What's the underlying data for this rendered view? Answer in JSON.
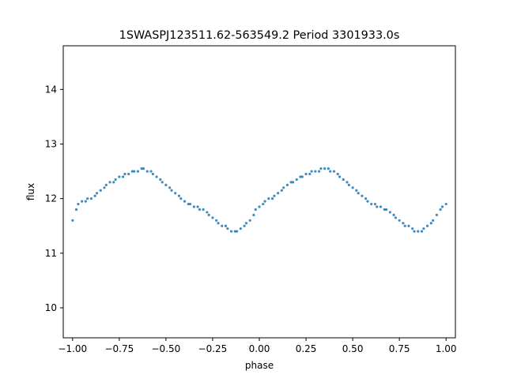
{
  "chart_data": {
    "type": "scatter",
    "title": "1SWASPJ123511.62-563549.2 Period 3301933.0s",
    "xlabel": "phase",
    "ylabel": "flux",
    "xlim": [
      -1.05,
      1.05
    ],
    "ylim": [
      9.45,
      14.8
    ],
    "grid": false,
    "legend": "none",
    "marker_color": "#1f77b4",
    "x_ticks": [
      -1.0,
      -0.75,
      -0.5,
      -0.25,
      0.0,
      0.25,
      0.5,
      0.75,
      1.0
    ],
    "x_tick_labels": [
      "−1.00",
      "−0.75",
      "−0.50",
      "−0.25",
      "0.00",
      "0.25",
      "0.50",
      "0.75",
      "1.00"
    ],
    "y_ticks": [
      10,
      11,
      12,
      13,
      14
    ],
    "y_tick_labels": [
      "10",
      "11",
      "12",
      "13",
      "14"
    ],
    "series": [
      {
        "x": [
          -1.0,
          -0.98,
          -0.97,
          -0.95,
          -0.93,
          -0.92,
          -0.9,
          -0.88,
          -0.87,
          -0.85,
          -0.83,
          -0.82,
          -0.8,
          -0.78,
          -0.77,
          -0.75,
          -0.73,
          -0.72,
          -0.7,
          -0.68,
          -0.67,
          -0.65,
          -0.63,
          -0.62,
          -0.6,
          -0.58,
          -0.57,
          -0.55,
          -0.53,
          -0.52,
          -0.5,
          -0.48,
          -0.47,
          -0.45,
          -0.43,
          -0.42,
          -0.4,
          -0.38,
          -0.37,
          -0.35,
          -0.33,
          -0.32,
          -0.3,
          -0.28,
          -0.27,
          -0.25,
          -0.23,
          -0.22,
          -0.2,
          -0.18,
          -0.17,
          -0.15,
          -0.13,
          -0.12,
          -0.1,
          -0.08,
          -0.07,
          -0.05,
          -0.03,
          -0.02,
          0.0,
          0.02,
          0.03,
          0.05,
          0.07,
          0.08,
          0.1,
          0.12,
          0.13,
          0.15,
          0.17,
          0.18,
          0.2,
          0.22,
          0.23,
          0.25,
          0.27,
          0.28,
          0.3,
          0.32,
          0.33,
          0.35,
          0.37,
          0.38,
          0.4,
          0.42,
          0.43,
          0.45,
          0.47,
          0.48,
          0.5,
          0.52,
          0.53,
          0.55,
          0.57,
          0.58,
          0.6,
          0.62,
          0.63,
          0.65,
          0.67,
          0.68,
          0.7,
          0.72,
          0.73,
          0.75,
          0.77,
          0.78,
          0.8,
          0.82,
          0.83,
          0.85,
          0.87,
          0.88,
          0.9,
          0.92,
          0.93,
          0.95,
          0.97,
          0.98,
          1.0
        ],
        "y": [
          11.6,
          11.8,
          11.9,
          11.95,
          11.95,
          12.0,
          12.0,
          12.05,
          12.1,
          12.15,
          12.2,
          12.25,
          12.3,
          12.3,
          12.35,
          12.4,
          12.4,
          12.45,
          12.45,
          12.5,
          12.5,
          12.5,
          12.55,
          12.55,
          12.5,
          12.5,
          12.45,
          12.4,
          12.35,
          12.3,
          12.25,
          12.2,
          12.15,
          12.1,
          12.05,
          12.0,
          11.95,
          11.9,
          11.9,
          11.85,
          11.85,
          11.8,
          11.8,
          11.75,
          11.7,
          11.65,
          11.6,
          11.55,
          11.5,
          11.5,
          11.45,
          11.4,
          11.4,
          11.4,
          11.45,
          11.5,
          11.55,
          11.6,
          11.7,
          11.8,
          11.85,
          11.9,
          11.95,
          12.0,
          12.0,
          12.05,
          12.1,
          12.15,
          12.2,
          12.25,
          12.3,
          12.3,
          12.35,
          12.4,
          12.4,
          12.45,
          12.45,
          12.5,
          12.5,
          12.5,
          12.55,
          12.55,
          12.55,
          12.5,
          12.5,
          12.45,
          12.4,
          12.35,
          12.3,
          12.25,
          12.2,
          12.15,
          12.1,
          12.05,
          12.0,
          11.95,
          11.9,
          11.9,
          11.85,
          11.85,
          11.8,
          11.8,
          11.75,
          11.7,
          11.65,
          11.6,
          11.55,
          11.5,
          11.5,
          11.45,
          11.4,
          11.4,
          11.4,
          11.45,
          11.5,
          11.55,
          11.6,
          11.7,
          11.8,
          11.85,
          11.9
        ]
      }
    ]
  }
}
